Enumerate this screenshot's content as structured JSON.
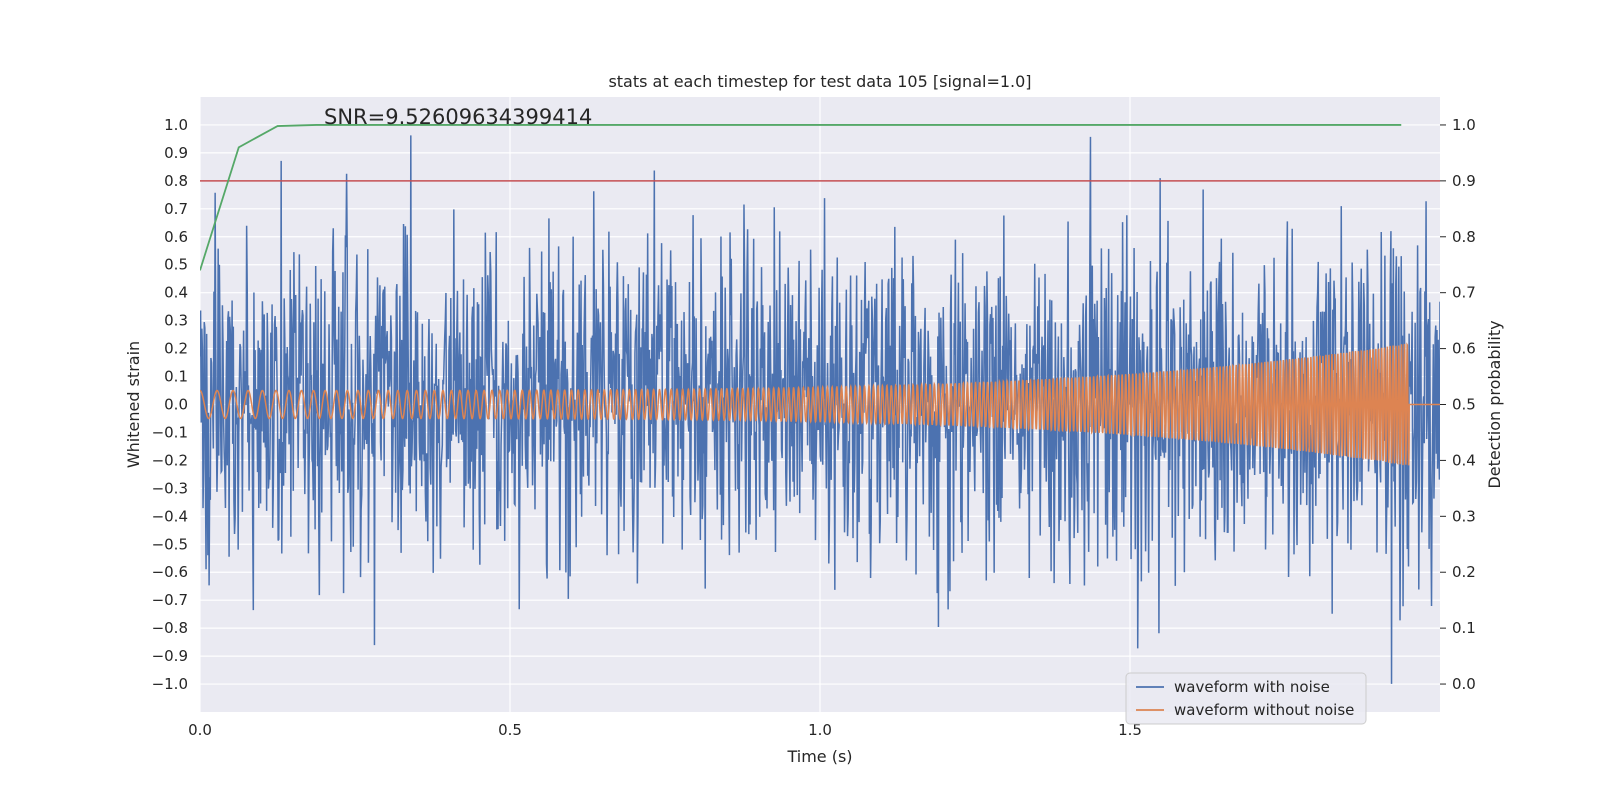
{
  "chart_data": {
    "type": "line",
    "title": "stats at each timestep for test data 105 [signal=1.0]",
    "xlabel": "Time (s)",
    "ylabel": "Whitened strain",
    "y2label": "Detection probability",
    "xlim": [
      0.0,
      2.0
    ],
    "ylim": [
      -1.1,
      1.1
    ],
    "y2lim": [
      -0.05,
      1.05
    ],
    "x_ticks": [
      0.0,
      0.5,
      1.0,
      1.5
    ],
    "x_tick_labels": [
      "0.0",
      "0.5",
      "1.0",
      "1.5"
    ],
    "y_ticks": [
      1.0,
      0.9,
      0.8,
      0.7,
      0.6,
      0.5,
      0.4,
      0.3,
      0.2,
      0.1,
      0.0,
      -0.1,
      -0.2,
      -0.3,
      -0.4,
      -0.5,
      -0.6,
      -0.7,
      -0.8,
      -0.9,
      -1.0
    ],
    "y_tick_labels": [
      "1.0",
      "0.9",
      "0.8",
      "0.7",
      "0.6",
      "0.5",
      "0.4",
      "0.3",
      "0.2",
      "0.1",
      "0.0",
      "−0.1",
      "−0.2",
      "−0.3",
      "−0.4",
      "−0.5",
      "−0.6",
      "−0.7",
      "−0.8",
      "−0.9",
      "−1.0"
    ],
    "y2_ticks": [
      1.0,
      0.9,
      0.8,
      0.7,
      0.6,
      0.5,
      0.4,
      0.3,
      0.2,
      0.1,
      0.0
    ],
    "y2_tick_labels": [
      "1.0",
      "0.9",
      "0.8",
      "0.7",
      "0.6",
      "0.5",
      "0.4",
      "0.3",
      "0.2",
      "0.1",
      "0.0"
    ],
    "grid": true,
    "legend_position": "lower-right",
    "legend": [
      "waveform with noise",
      "waveform without noise"
    ],
    "annotation": {
      "text": "SNR=9.52609634399414",
      "x": 0.2,
      "y": 1.0
    },
    "series": [
      {
        "name": "waveform with noise",
        "color": "#4c72b0",
        "axis": "left",
        "samples_shown": 2048,
        "approx_range": [
          -1.0,
          1.0
        ]
      },
      {
        "name": "waveform without noise",
        "color": "#dd8452",
        "axis": "left",
        "type": "chirp",
        "amplitude_start": 0.05,
        "amplitude_end": 0.22,
        "freq_start_hz": 35,
        "freq_end_hz": 220,
        "ends_at_s": 1.95
      },
      {
        "name": "detection probability",
        "color": "#55a868",
        "axis": "right",
        "x": [
          0.0,
          0.0625,
          0.125,
          0.1875,
          0.25,
          0.5,
          1.0,
          1.5,
          1.9375
        ],
        "values": [
          0.74,
          0.96,
          0.998,
          1.0,
          1.0,
          1.0,
          1.0,
          1.0,
          1.0
        ]
      },
      {
        "name": "threshold",
        "color": "#c44e52",
        "axis": "right",
        "value": 0.9
      }
    ]
  }
}
